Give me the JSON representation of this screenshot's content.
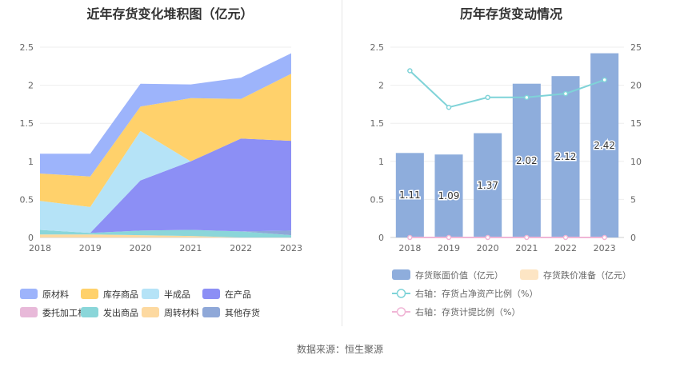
{
  "source": "数据来源：恒生聚源",
  "chart_data": [
    {
      "type": "area",
      "title": "近年存货变化堆积图（亿元）",
      "x": [
        "2018",
        "2019",
        "2020",
        "2021",
        "2022",
        "2023"
      ],
      "ylim": [
        0,
        2.5
      ],
      "yticks": [
        "0",
        "0.5",
        "1",
        "1.5",
        "2",
        "2.5"
      ],
      "stacked": true,
      "grid": true,
      "legend_position": "bottom",
      "series": [
        {
          "name": "周转材料",
          "color": "#fdd9a0",
          "values": [
            0.04,
            0.04,
            0.03,
            0.02,
            0.0,
            0.0
          ]
        },
        {
          "name": "发出商品",
          "color": "#8ad6d9",
          "values": [
            0.06,
            0.02,
            0.06,
            0.08,
            0.08,
            0.03
          ]
        },
        {
          "name": "其他存货",
          "color": "#8fa8d8",
          "values": [
            0.0,
            0.0,
            0.0,
            0.0,
            0.0,
            0.06
          ]
        },
        {
          "name": "委托加工材料",
          "color": "#e8b9d9",
          "values": [
            0.0,
            0.0,
            0.0,
            0.0,
            0.0,
            0.0
          ]
        },
        {
          "name": "在产品",
          "color": "#8c8ff5",
          "values": [
            0.0,
            0.0,
            0.66,
            0.9,
            1.22,
            1.18
          ]
        },
        {
          "name": "半成品",
          "color": "#b5e3f7",
          "values": [
            0.38,
            0.34,
            0.65,
            0.0,
            0.0,
            0.0
          ]
        },
        {
          "name": "库存商品",
          "color": "#ffd16b",
          "values": [
            0.36,
            0.4,
            0.32,
            0.83,
            0.52,
            0.88
          ]
        },
        {
          "name": "原材料",
          "color": "#9db4fb",
          "values": [
            0.26,
            0.3,
            0.3,
            0.18,
            0.28,
            0.27
          ]
        }
      ],
      "legend_order": [
        "原材料",
        "库存商品",
        "半成品",
        "在产品",
        "委托加工材料",
        "发出商品",
        "周转材料",
        "其他存货"
      ]
    },
    {
      "type": "bar",
      "title": "历年存货变动情况",
      "categories": [
        "2018",
        "2019",
        "2020",
        "2021",
        "2022",
        "2023"
      ],
      "ylim": [
        0,
        2.5
      ],
      "yticks": [
        "0",
        "0.5",
        "1",
        "1.5",
        "2",
        "2.5"
      ],
      "y2lim": [
        0,
        25
      ],
      "y2ticks": [
        "0",
        "5",
        "10",
        "15",
        "20",
        "25"
      ],
      "legend_position": "bottom",
      "series": [
        {
          "name": "存货账面价值（亿元）",
          "kind": "bar",
          "axis": "left",
          "color": "#8eaddc",
          "values": [
            1.11,
            1.09,
            1.37,
            2.02,
            2.12,
            2.42
          ],
          "labels": [
            "1.11",
            "1.09",
            "1.37",
            "2.02",
            "2.12",
            "2.42"
          ]
        },
        {
          "name": "存货跌价准备（亿元）",
          "kind": "bar",
          "axis": "left",
          "color": "#fde5c4",
          "values": [
            0,
            0,
            0,
            0,
            0,
            0
          ]
        },
        {
          "name": "右轴：存货占净资产比例（%）",
          "kind": "line",
          "axis": "right",
          "color": "#7fd3d8",
          "values": [
            21.9,
            17.1,
            18.4,
            18.4,
            18.9,
            20.7
          ]
        },
        {
          "name": "右轴：存货计提比例（%）",
          "kind": "line",
          "axis": "right",
          "color": "#f0b6d6",
          "values": [
            0,
            0,
            0,
            0,
            0,
            0
          ]
        }
      ]
    }
  ]
}
